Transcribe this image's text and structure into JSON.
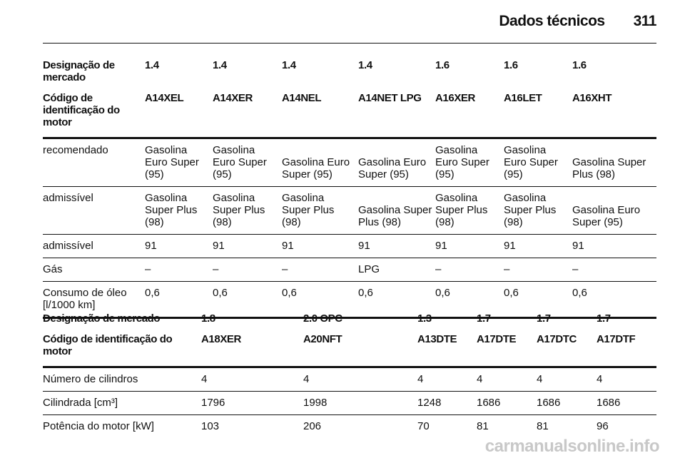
{
  "header": {
    "title": "Dados técnicos",
    "page": "311"
  },
  "table1": {
    "head": [
      [
        "Designação de mercado",
        "1.4",
        "1.4",
        "1.4",
        "1.4",
        "1.6",
        "1.6",
        "1.6"
      ],
      [
        "Código de identificação do motor",
        "A14XEL",
        "A14XER",
        "A14NEL",
        "A14NET LPG",
        "A16XER",
        "A16LET",
        "A16XHT"
      ]
    ],
    "rows": [
      [
        "recomendado",
        "Gasolina Euro Super (95)",
        "Gasolina Euro Super (95)",
        "Gasolina Euro Super (95)",
        "Gasolina Euro Super (95)",
        "Gasolina Euro Super (95)",
        "Gasolina Euro Super (95)",
        "Gasolina Super Plus (98)"
      ],
      [
        "admissível",
        "Gasolina Super Plus (98)",
        "Gasolina Super Plus (98)",
        "Gasolina Super Plus (98)",
        "Gasolina Super Plus (98)",
        "Gasolina Super Plus (98)",
        "Gasolina Super Plus (98)",
        "Gasolina Euro Super (95)"
      ],
      [
        "admissível",
        "91",
        "91",
        "91",
        "91",
        "91",
        "91",
        "91"
      ],
      [
        "Gás",
        "–",
        "–",
        "–",
        "LPG",
        "–",
        "–",
        "–"
      ],
      [
        "Consumo de óleo [l/1000 km]",
        "0,6",
        "0,6",
        "0,6",
        "0,6",
        "0,6",
        "0,6",
        "0,6"
      ]
    ]
  },
  "table2": {
    "head": [
      [
        "Designação de mercado",
        "1.8",
        "2.0 OPC",
        "1.3",
        "1.7",
        "1.7",
        "1.7"
      ],
      [
        "Código de identificação do motor",
        "A18XER",
        "A20NFT",
        "A13DTE",
        "A17DTE",
        "A17DTC",
        "A17DTF"
      ]
    ],
    "rows": [
      [
        "Número de cilindros",
        "4",
        "4",
        "4",
        "4",
        "4",
        "4"
      ],
      [
        "Cilindrada [cm³]",
        "1796",
        "1998",
        "1248",
        "1686",
        "1686",
        "1686"
      ],
      [
        "Potência do motor [kW]",
        "103",
        "206",
        "70",
        "81",
        "81",
        "96"
      ]
    ]
  },
  "watermark": "carmanualsonline.info"
}
